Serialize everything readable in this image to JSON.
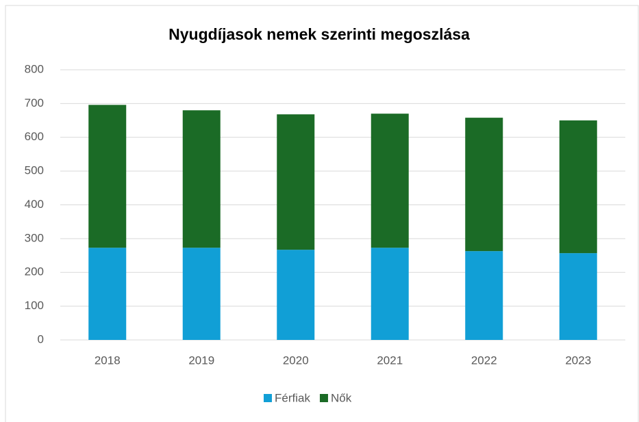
{
  "chart_data": {
    "type": "stacked_bar",
    "title": "Nyugdíjasok nemek szerinti megoszlása",
    "categories": [
      "2018",
      "2019",
      "2020",
      "2021",
      "2022",
      "2023"
    ],
    "series": [
      {
        "name": "Férfiak",
        "color": "#119fd6",
        "values": [
          273,
          273,
          267,
          273,
          263,
          257
        ]
      },
      {
        "name": "Nők",
        "color": "#1b6b26",
        "values": [
          423,
          407,
          401,
          397,
          395,
          393
        ]
      }
    ],
    "ylim": [
      0,
      800
    ],
    "yticks": [
      0,
      100,
      200,
      300,
      400,
      500,
      600,
      700,
      800
    ],
    "grid": true,
    "legend": "bottom"
  }
}
